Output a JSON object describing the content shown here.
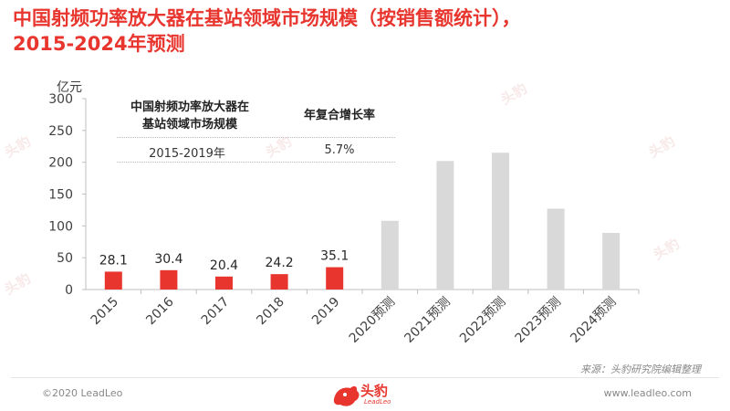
{
  "title_line1": "中国射频功率放大器在基站领域市场规模（按销售额统计），",
  "title_line2": "2015-2024年预测",
  "table": {
    "header1_line1": "中国射频功率放大器在",
    "header1_line2": "基站领域市场规模",
    "header2": "年复合增长率",
    "period": "2015-2019年",
    "cagr": "5.7%"
  },
  "source": "来源：头豹研究院编辑整理",
  "copyright": "©2020 LeadLeo",
  "website": "www.leadleo.com",
  "logo": {
    "text": "头豹",
    "sub": "LeadLeo"
  },
  "watermark_text": "头豹",
  "colors": {
    "actual": "#e8362f",
    "forecast": "#d9d9d9",
    "title": "#e8362f"
  },
  "chart_data": {
    "type": "bar",
    "ylabel": "亿元",
    "ylim": [
      0,
      300
    ],
    "yticks": [
      0,
      50,
      100,
      150,
      200,
      250,
      300
    ],
    "categories": [
      "2015",
      "2016",
      "2017",
      "2018",
      "2019",
      "2020预测",
      "2021预测",
      "2022预测",
      "2023预测",
      "2024预测"
    ],
    "values": [
      28.1,
      30.4,
      20.4,
      24.2,
      35.1,
      108,
      202,
      215,
      127,
      89
    ],
    "data_labels": [
      "28.1",
      "30.4",
      "20.4",
      "24.2",
      "35.1",
      "",
      "",
      "",
      "",
      ""
    ],
    "forecast_from_index": 5
  }
}
